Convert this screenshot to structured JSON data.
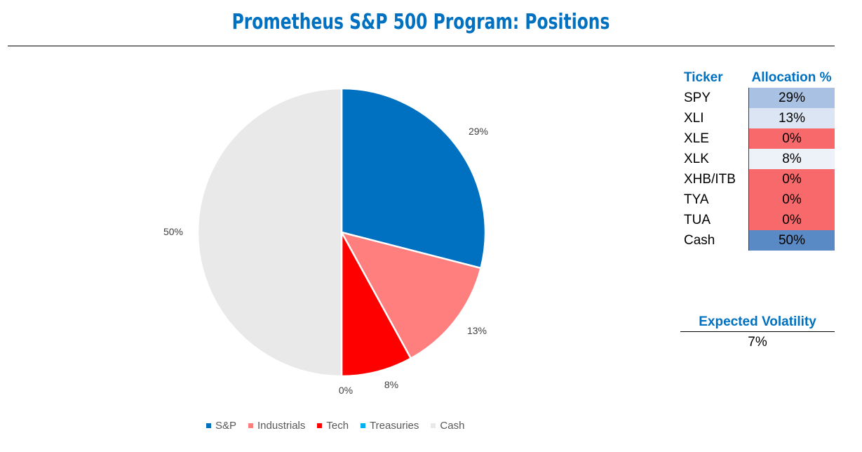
{
  "title": "Prometheus S&P 500 Program: Positions",
  "chart_data": {
    "type": "pie",
    "title": "Prometheus S&P 500 Program: Positions",
    "legend_position": "bottom",
    "slices": [
      {
        "name": "S&P",
        "value": 29,
        "label": "29%",
        "color": "#0070c0"
      },
      {
        "name": "Industrials",
        "value": 13,
        "label": "13%",
        "color": "#ff7f7f"
      },
      {
        "name": "Tech",
        "value": 8,
        "label": "8%",
        "color": "#ff0000"
      },
      {
        "name": "Treasuries",
        "value": 0,
        "label": "0%",
        "color": "#00b0f0"
      },
      {
        "name": "Cash",
        "value": 50,
        "label": "50%",
        "color": "#e9e9e9"
      }
    ]
  },
  "allocation_table": {
    "headers": {
      "ticker": "Ticker",
      "allocation": "Allocation %"
    },
    "rows": [
      {
        "ticker": "SPY",
        "allocation": "29%",
        "color": "#a9c1e3"
      },
      {
        "ticker": "XLI",
        "allocation": "13%",
        "color": "#dbe5f3"
      },
      {
        "ticker": "XLE",
        "allocation": "0%",
        "color": "#f8696b"
      },
      {
        "ticker": "XLK",
        "allocation": "8%",
        "color": "#edf2f9"
      },
      {
        "ticker": "XHB/ITB",
        "allocation": "0%",
        "color": "#f8696b"
      },
      {
        "ticker": "TYA",
        "allocation": "0%",
        "color": "#f8696b"
      },
      {
        "ticker": "TUA",
        "allocation": "0%",
        "color": "#f8696b"
      },
      {
        "ticker": "Cash",
        "allocation": "50%",
        "color": "#5a8ac6"
      }
    ]
  },
  "expected_volatility": {
    "label": "Expected Volatility",
    "value": "7%"
  }
}
